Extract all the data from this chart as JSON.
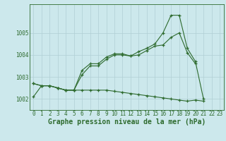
{
  "title": "Graphe pression niveau de la mer (hPa)",
  "x_labels": [
    "0",
    "1",
    "2",
    "3",
    "4",
    "5",
    "6",
    "7",
    "8",
    "9",
    "10",
    "11",
    "12",
    "13",
    "14",
    "15",
    "16",
    "17",
    "18",
    "19",
    "20",
    "21",
    "22",
    "23"
  ],
  "line_max_x": [
    0,
    1,
    2,
    3,
    4,
    5,
    6,
    7,
    8,
    9,
    10,
    11,
    12,
    13,
    14,
    15,
    16,
    17,
    18,
    19,
    20,
    21
  ],
  "line_max_y": [
    1002.7,
    1002.6,
    1002.6,
    1002.5,
    1002.4,
    1002.4,
    1003.3,
    1003.6,
    1003.6,
    1003.9,
    1004.05,
    1004.05,
    1003.95,
    1004.15,
    1004.3,
    1004.5,
    1005.0,
    1005.8,
    1005.8,
    1004.3,
    1003.7,
    1002.0
  ],
  "line_mean_x": [
    0,
    1,
    2,
    3,
    4,
    5,
    6,
    7,
    8,
    9,
    10,
    11,
    12,
    13,
    14,
    15,
    16,
    17,
    18,
    19,
    20
  ],
  "line_mean_y": [
    1002.7,
    1002.6,
    1002.6,
    1002.5,
    1002.4,
    1002.4,
    1003.1,
    1003.5,
    1003.5,
    1003.8,
    1004.0,
    1004.0,
    1003.95,
    1004.0,
    1004.2,
    1004.4,
    1004.45,
    1004.8,
    1005.0,
    1004.1,
    1003.6
  ],
  "line_min_x": [
    0,
    1,
    2,
    3,
    4,
    5,
    6,
    7,
    8,
    9,
    10,
    11,
    12,
    13,
    14,
    15,
    16,
    17,
    18,
    19,
    20,
    21
  ],
  "line_min_y": [
    1002.1,
    1002.6,
    1002.6,
    1002.5,
    1002.4,
    1002.4,
    1002.4,
    1002.4,
    1002.4,
    1002.4,
    1002.35,
    1002.3,
    1002.25,
    1002.2,
    1002.15,
    1002.1,
    1002.05,
    1002.0,
    1001.95,
    1001.9,
    1001.95,
    1001.9
  ],
  "bg_color": "#cce8ec",
  "grid_color": "#b0cfd4",
  "line_color": "#2d6a2d",
  "ylim": [
    1001.5,
    1006.3
  ],
  "yticks": [
    1002,
    1003,
    1004,
    1005
  ],
  "title_fontsize": 7.0,
  "tick_fontsize": 5.5
}
